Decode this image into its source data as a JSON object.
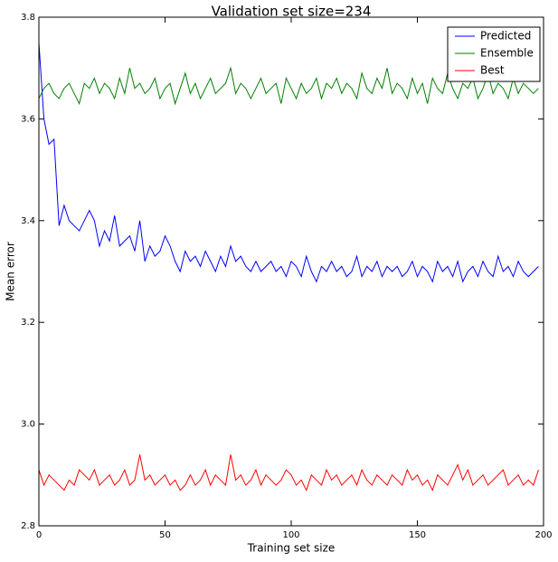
{
  "chart_data": {
    "type": "line",
    "title": "Validation set size=234",
    "xlabel": "Training set size",
    "ylabel": "Mean error",
    "xlim": [
      0,
      200
    ],
    "xticks": [
      0,
      50,
      100,
      150,
      200
    ],
    "ylim": [
      2.8,
      3.8
    ],
    "yticks": [
      2.8,
      {
        "value": 3,
        "label": "3.0"
      },
      3.2,
      3.4,
      3.6,
      3.8
    ],
    "legend": "upper right",
    "x": [
      0,
      2,
      4,
      6,
      8,
      10,
      12,
      14,
      16,
      18,
      20,
      22,
      24,
      26,
      28,
      30,
      32,
      34,
      36,
      38,
      40,
      42,
      44,
      46,
      48,
      50,
      52,
      54,
      56,
      58,
      60,
      62,
      64,
      66,
      68,
      70,
      72,
      74,
      76,
      78,
      80,
      82,
      84,
      86,
      88,
      90,
      92,
      94,
      96,
      98,
      100,
      102,
      104,
      106,
      108,
      110,
      112,
      114,
      116,
      118,
      120,
      122,
      124,
      126,
      128,
      130,
      132,
      134,
      136,
      138,
      140,
      142,
      144,
      146,
      148,
      150,
      152,
      154,
      156,
      158,
      160,
      162,
      164,
      166,
      168,
      170,
      172,
      174,
      176,
      178,
      180,
      182,
      184,
      186,
      188,
      190,
      192,
      194,
      196,
      198
    ],
    "series": [
      {
        "name": "Predicted",
        "color": "#0000ff",
        "values": [
          3.75,
          3.6,
          3.55,
          3.56,
          3.39,
          3.43,
          3.4,
          3.39,
          3.38,
          3.4,
          3.42,
          3.4,
          3.35,
          3.38,
          3.36,
          3.41,
          3.35,
          3.36,
          3.37,
          3.34,
          3.4,
          3.32,
          3.35,
          3.33,
          3.34,
          3.37,
          3.35,
          3.32,
          3.3,
          3.34,
          3.32,
          3.33,
          3.31,
          3.34,
          3.32,
          3.3,
          3.33,
          3.31,
          3.35,
          3.32,
          3.33,
          3.31,
          3.3,
          3.32,
          3.3,
          3.31,
          3.32,
          3.3,
          3.31,
          3.29,
          3.32,
          3.31,
          3.29,
          3.33,
          3.3,
          3.28,
          3.31,
          3.3,
          3.32,
          3.3,
          3.31,
          3.29,
          3.3,
          3.33,
          3.29,
          3.31,
          3.3,
          3.32,
          3.29,
          3.31,
          3.3,
          3.31,
          3.29,
          3.3,
          3.32,
          3.29,
          3.31,
          3.3,
          3.28,
          3.32,
          3.3,
          3.31,
          3.29,
          3.32,
          3.28,
          3.3,
          3.31,
          3.29,
          3.32,
          3.3,
          3.29,
          3.33,
          3.3,
          3.31,
          3.29,
          3.32,
          3.3,
          3.29,
          3.3,
          3.31
        ]
      },
      {
        "name": "Ensemble",
        "color": "#008000",
        "values": [
          3.64,
          3.66,
          3.67,
          3.65,
          3.64,
          3.66,
          3.67,
          3.65,
          3.63,
          3.67,
          3.66,
          3.68,
          3.65,
          3.67,
          3.66,
          3.64,
          3.68,
          3.65,
          3.7,
          3.66,
          3.67,
          3.65,
          3.66,
          3.68,
          3.64,
          3.66,
          3.67,
          3.63,
          3.66,
          3.69,
          3.65,
          3.67,
          3.64,
          3.66,
          3.68,
          3.65,
          3.66,
          3.67,
          3.7,
          3.65,
          3.67,
          3.66,
          3.64,
          3.66,
          3.68,
          3.65,
          3.66,
          3.67,
          3.63,
          3.68,
          3.66,
          3.64,
          3.67,
          3.65,
          3.66,
          3.68,
          3.64,
          3.67,
          3.66,
          3.68,
          3.65,
          3.67,
          3.66,
          3.64,
          3.69,
          3.66,
          3.65,
          3.68,
          3.66,
          3.7,
          3.65,
          3.67,
          3.66,
          3.64,
          3.68,
          3.65,
          3.67,
          3.63,
          3.68,
          3.66,
          3.65,
          3.69,
          3.66,
          3.64,
          3.67,
          3.66,
          3.68,
          3.64,
          3.66,
          3.69,
          3.65,
          3.67,
          3.66,
          3.64,
          3.68,
          3.65,
          3.67,
          3.66,
          3.65,
          3.66
        ]
      },
      {
        "name": "Best",
        "color": "#ff0000",
        "values": [
          2.91,
          2.88,
          2.9,
          2.89,
          2.88,
          2.87,
          2.89,
          2.88,
          2.91,
          2.9,
          2.89,
          2.91,
          2.88,
          2.89,
          2.9,
          2.88,
          2.89,
          2.91,
          2.88,
          2.89,
          2.94,
          2.89,
          2.9,
          2.88,
          2.89,
          2.9,
          2.88,
          2.89,
          2.87,
          2.88,
          2.9,
          2.88,
          2.89,
          2.91,
          2.88,
          2.9,
          2.89,
          2.88,
          2.94,
          2.89,
          2.9,
          2.88,
          2.89,
          2.91,
          2.88,
          2.9,
          2.89,
          2.88,
          2.89,
          2.91,
          2.9,
          2.88,
          2.89,
          2.87,
          2.9,
          2.89,
          2.88,
          2.91,
          2.89,
          2.9,
          2.88,
          2.89,
          2.9,
          2.88,
          2.91,
          2.89,
          2.88,
          2.9,
          2.89,
          2.88,
          2.9,
          2.89,
          2.88,
          2.91,
          2.89,
          2.9,
          2.88,
          2.89,
          2.87,
          2.9,
          2.89,
          2.88,
          2.9,
          2.92,
          2.89,
          2.91,
          2.88,
          2.89,
          2.9,
          2.88,
          2.89,
          2.9,
          2.91,
          2.88,
          2.89,
          2.9,
          2.88,
          2.89,
          2.88,
          2.91
        ]
      }
    ]
  }
}
